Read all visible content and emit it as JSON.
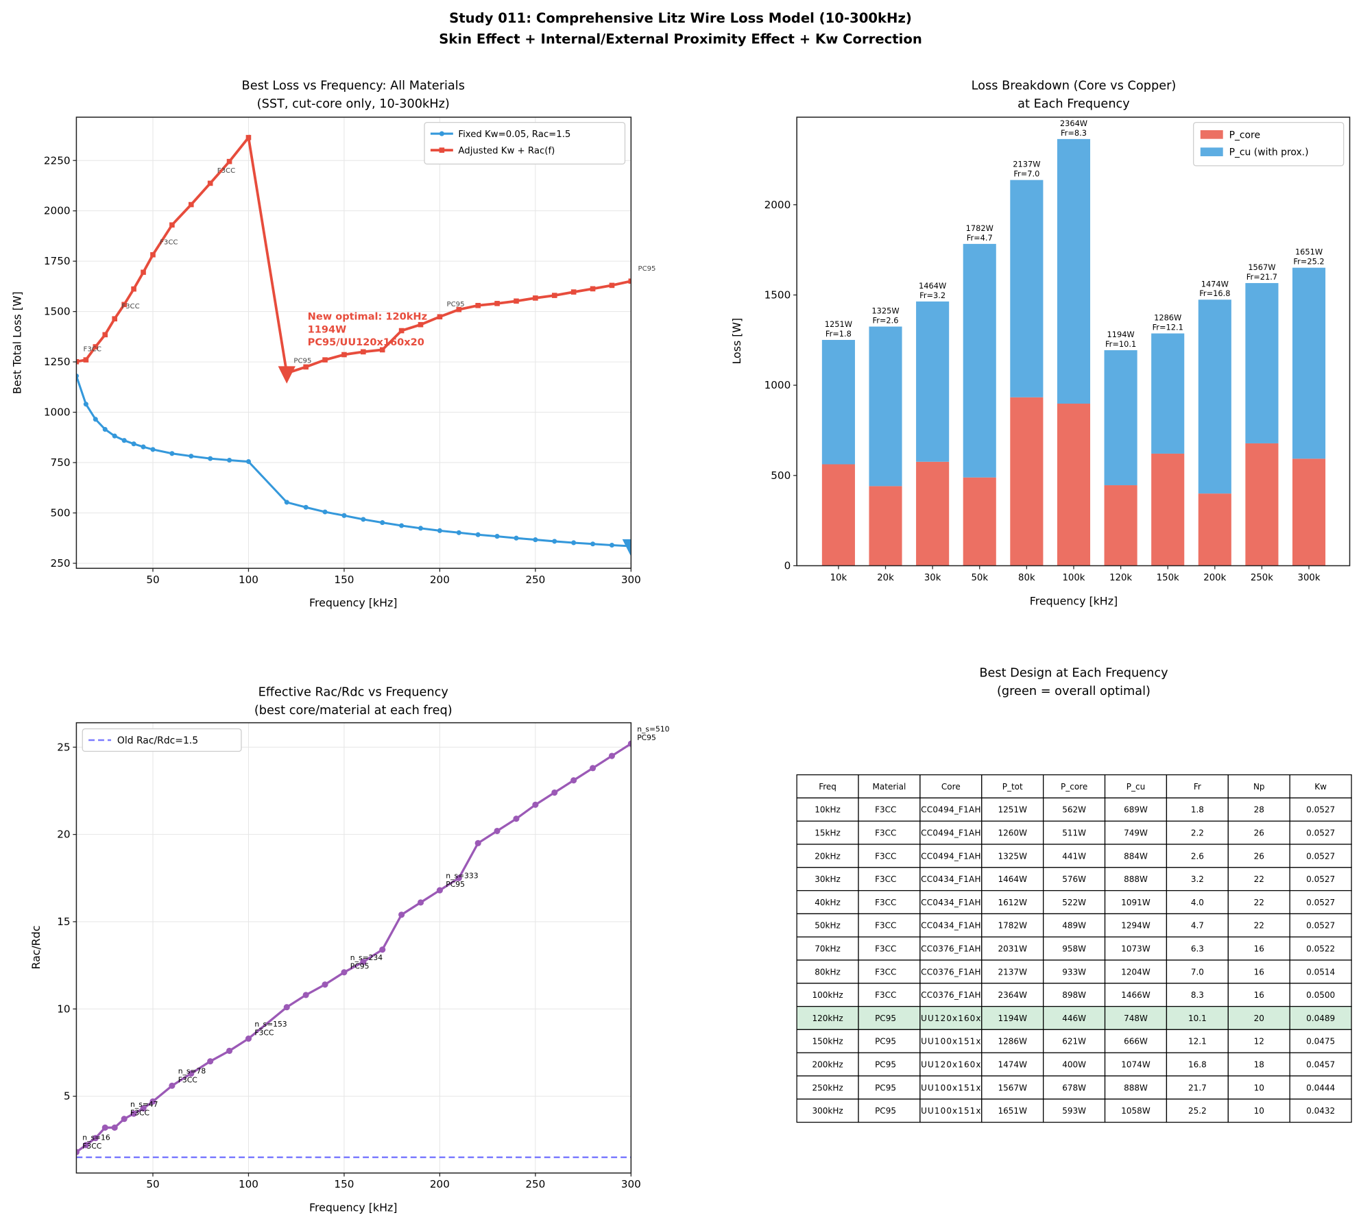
{
  "suptitle": [
    "Study 011: Comprehensive Litz Wire Loss Model (10-300kHz)",
    "Skin Effect + Internal/External Proximity Effect + Kw Correction"
  ],
  "colors": {
    "fixed": "#3498db",
    "adjusted": "#e74c3c",
    "rac": "#9b59b6",
    "old_rac": "#7b7bff",
    "core": "#ec7063",
    "cu": "#5dade2",
    "optimal_row": "#d5eddc"
  },
  "chart_data": [
    {
      "type": "line",
      "title": [
        "Best Loss vs Frequency: All Materials",
        "(SST, cut-core only, 10-300kHz)"
      ],
      "xlabel": "Frequency [kHz]",
      "ylabel": "Best Total Loss [W]",
      "xlim": [
        10,
        300
      ],
      "ylim": [
        225,
        2465
      ],
      "xticks": [
        50,
        100,
        150,
        200,
        250,
        300
      ],
      "yticks": [
        250,
        500,
        750,
        1000,
        1250,
        1500,
        1750,
        2000,
        2250
      ],
      "grid": true,
      "legend": "top-right",
      "x": [
        10,
        15,
        20,
        25,
        30,
        35,
        40,
        45,
        50,
        60,
        70,
        80,
        90,
        100,
        120,
        130,
        140,
        150,
        160,
        170,
        180,
        190,
        200,
        210,
        220,
        230,
        240,
        250,
        260,
        270,
        280,
        290,
        300
      ],
      "series": [
        {
          "name": "Fixed Kw=0.05, Rac=1.5",
          "color": "#3498db",
          "marker": "circle",
          "values": [
            1180,
            1040,
            965,
            915,
            882,
            860,
            843,
            828,
            815,
            795,
            782,
            770,
            762,
            755,
            553,
            528,
            505,
            487,
            468,
            452,
            437,
            424,
            412,
            402,
            392,
            384,
            375,
            367,
            359,
            352,
            346,
            340,
            335
          ],
          "optimum": {
            "x": 300,
            "y": 335
          }
        },
        {
          "name": "Adjusted Kw + Rac(f)",
          "color": "#e74c3c",
          "marker": "square",
          "values": [
            1251,
            1260,
            1325,
            1385,
            1464,
            1535,
            1612,
            1695,
            1782,
            1930,
            2031,
            2137,
            2245,
            2364,
            1194,
            1225,
            1260,
            1286,
            1300,
            1310,
            1405,
            1435,
            1474,
            1510,
            1530,
            1540,
            1552,
            1567,
            1580,
            1597,
            1613,
            1630,
            1651
          ],
          "optimum": {
            "x": 120,
            "y": 1194
          }
        }
      ],
      "point_labels": [
        {
          "x": 10,
          "y": 1251,
          "text": "F3CC"
        },
        {
          "x": 30,
          "y": 1464,
          "text": "F3CC"
        },
        {
          "x": 50,
          "y": 1782,
          "text": "F3CC"
        },
        {
          "x": 80,
          "y": 2137,
          "text": "F3CC"
        },
        {
          "x": 120,
          "y": 1194,
          "text": "PC95"
        },
        {
          "x": 200,
          "y": 1474,
          "text": "PC95"
        },
        {
          "x": 300,
          "y": 1651,
          "text": "PC95"
        }
      ],
      "annotation": {
        "lines": [
          "New optimal: 120kHz",
          "1194W",
          "PC95/UU120x160x20"
        ],
        "x": 130,
        "y": 1400
      }
    },
    {
      "type": "bar",
      "stacked": true,
      "title": [
        "Loss Breakdown (Core vs Copper)",
        "at Each Frequency"
      ],
      "xlabel": "Frequency [kHz]",
      "ylabel": "Loss [W]",
      "ylim": [
        0,
        2485
      ],
      "yticks": [
        0,
        500,
        1000,
        1500,
        2000
      ],
      "legend": "top-right",
      "categories": [
        "10k",
        "20k",
        "30k",
        "50k",
        "80k",
        "100k",
        "120k",
        "150k",
        "200k",
        "250k",
        "300k"
      ],
      "series": [
        {
          "name": "P_core",
          "color": "#ec7063",
          "values": [
            562,
            441,
            576,
            489,
            933,
            898,
            446,
            621,
            400,
            678,
            593
          ]
        },
        {
          "name": "P_cu (with prox.)",
          "color": "#5dade2",
          "values": [
            689,
            884,
            888,
            1294,
            1204,
            1466,
            748,
            666,
            1074,
            888,
            1058
          ]
        }
      ],
      "bar_labels": [
        [
          "1251W",
          "Fr=1.8"
        ],
        [
          "1325W",
          "Fr=2.6"
        ],
        [
          "1464W",
          "Fr=3.2"
        ],
        [
          "1782W",
          "Fr=4.7"
        ],
        [
          "2137W",
          "Fr=7.0"
        ],
        [
          "2364W",
          "Fr=8.3"
        ],
        [
          "1194W",
          "Fr=10.1"
        ],
        [
          "1286W",
          "Fr=12.1"
        ],
        [
          "1474W",
          "Fr=16.8"
        ],
        [
          "1567W",
          "Fr=21.7"
        ],
        [
          "1651W",
          "Fr=25.2"
        ]
      ]
    },
    {
      "type": "line",
      "title": [
        "Effective Rac/Rdc vs Frequency",
        "(best core/material at each freq)"
      ],
      "xlabel": "Frequency [kHz]",
      "ylabel": "Rac/Rdc",
      "xlim": [
        10,
        300
      ],
      "ylim": [
        0.6,
        26.4
      ],
      "xticks": [
        50,
        100,
        150,
        200,
        250,
        300
      ],
      "yticks": [
        5,
        10,
        15,
        20,
        25
      ],
      "grid": true,
      "legend": "top-left",
      "x": [
        10,
        15,
        20,
        25,
        30,
        35,
        40,
        45,
        50,
        60,
        70,
        80,
        90,
        100,
        120,
        130,
        140,
        150,
        160,
        170,
        180,
        190,
        200,
        210,
        220,
        230,
        240,
        250,
        260,
        270,
        280,
        290,
        300
      ],
      "values": [
        1.8,
        2.2,
        2.6,
        3.2,
        3.2,
        3.7,
        4.0,
        4.3,
        4.7,
        5.6,
        6.3,
        7.0,
        7.6,
        8.3,
        10.1,
        10.8,
        11.4,
        12.1,
        12.7,
        13.4,
        15.4,
        16.1,
        16.8,
        17.5,
        19.5,
        20.2,
        20.9,
        21.7,
        22.4,
        23.1,
        23.8,
        24.5,
        25.2
      ],
      "color": "#9b59b6",
      "reference": {
        "name": "Old Rac/Rdc=1.5",
        "y": 1.5,
        "color": "#7b7bff",
        "style": "dashed"
      },
      "point_labels": [
        {
          "x": 10,
          "y": 1.8,
          "lines": [
            "n_s=16",
            "F3CC"
          ]
        },
        {
          "x": 35,
          "y": 3.7,
          "lines": [
            "n_s=47",
            "F3CC"
          ]
        },
        {
          "x": 60,
          "y": 5.6,
          "lines": [
            "n_s=78",
            "F3CC"
          ]
        },
        {
          "x": 100,
          "y": 8.3,
          "lines": [
            "n_s=153",
            "F3CC"
          ]
        },
        {
          "x": 150,
          "y": 12.1,
          "lines": [
            "n_s=234",
            "PC95"
          ]
        },
        {
          "x": 200,
          "y": 16.8,
          "lines": [
            "n_s=333",
            "PC95"
          ]
        },
        {
          "x": 300,
          "y": 25.2,
          "lines": [
            "n_s=510",
            "PC95"
          ]
        }
      ]
    },
    {
      "type": "table",
      "title": [
        "Best Design at Each Frequency",
        "(green = overall optimal)"
      ],
      "columns": [
        "Freq",
        "Material",
        "Core",
        "P_tot",
        "P_core",
        "P_cu",
        "Fr",
        "Np",
        "Kw"
      ],
      "optimal_row": 9,
      "rows": [
        [
          "10kHz",
          "F3CC",
          "CC0494_F1AH",
          "1251W",
          "562W",
          "689W",
          "1.8",
          "28",
          "0.0527"
        ],
        [
          "15kHz",
          "F3CC",
          "CC0494_F1AH",
          "1260W",
          "511W",
          "749W",
          "2.2",
          "26",
          "0.0527"
        ],
        [
          "20kHz",
          "F3CC",
          "CC0494_F1AH",
          "1325W",
          "441W",
          "884W",
          "2.6",
          "26",
          "0.0527"
        ],
        [
          "30kHz",
          "F3CC",
          "CC0434_F1AH",
          "1464W",
          "576W",
          "888W",
          "3.2",
          "22",
          "0.0527"
        ],
        [
          "40kHz",
          "F3CC",
          "CC0434_F1AH",
          "1612W",
          "522W",
          "1091W",
          "4.0",
          "22",
          "0.0527"
        ],
        [
          "50kHz",
          "F3CC",
          "CC0434_F1AH",
          "1782W",
          "489W",
          "1294W",
          "4.7",
          "22",
          "0.0527"
        ],
        [
          "70kHz",
          "F3CC",
          "CC0376_F1AH",
          "2031W",
          "958W",
          "1073W",
          "6.3",
          "16",
          "0.0522"
        ],
        [
          "80kHz",
          "F3CC",
          "CC0376_F1AH",
          "2137W",
          "933W",
          "1204W",
          "7.0",
          "16",
          "0.0514"
        ],
        [
          "100kHz",
          "F3CC",
          "CC0376_F1AH",
          "2364W",
          "898W",
          "1466W",
          "8.3",
          "16",
          "0.0500"
        ],
        [
          "120kHz",
          "PC95",
          "UU120x160x",
          "1194W",
          "446W",
          "748W",
          "10.1",
          "20",
          "0.0489"
        ],
        [
          "150kHz",
          "PC95",
          "UU100x151x",
          "1286W",
          "621W",
          "666W",
          "12.1",
          "12",
          "0.0475"
        ],
        [
          "200kHz",
          "PC95",
          "UU120x160x",
          "1474W",
          "400W",
          "1074W",
          "16.8",
          "18",
          "0.0457"
        ],
        [
          "250kHz",
          "PC95",
          "UU100x151x",
          "1567W",
          "678W",
          "888W",
          "21.7",
          "10",
          "0.0444"
        ],
        [
          "300kHz",
          "PC95",
          "UU100x151x",
          "1651W",
          "593W",
          "1058W",
          "25.2",
          "10",
          "0.0432"
        ]
      ]
    }
  ]
}
